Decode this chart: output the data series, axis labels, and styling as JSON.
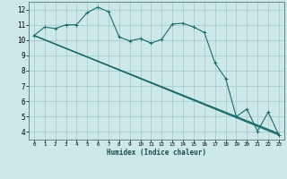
{
  "xlabel": "Humidex (Indice chaleur)",
  "background_color": "#cce8e8",
  "grid_color": "#aacccc",
  "line_color": "#1a6b6b",
  "xlim": [
    -0.5,
    23.5
  ],
  "ylim": [
    3.5,
    12.5
  ],
  "yticks": [
    4,
    5,
    6,
    7,
    8,
    9,
    10,
    11,
    12
  ],
  "xtick_labels": [
    "0",
    "1",
    "2",
    "3",
    "4",
    "5",
    "6",
    "7",
    "8",
    "9",
    "10",
    "11",
    "12",
    "13",
    "14",
    "15",
    "16",
    "17",
    "18",
    "19",
    "20",
    "21",
    "22",
    "23"
  ],
  "line1_x": [
    0,
    1,
    2,
    3,
    4,
    5,
    6,
    7,
    8,
    9,
    10,
    11,
    12,
    13,
    14,
    15,
    16,
    17,
    18,
    19,
    20,
    21,
    22,
    23
  ],
  "line1_y": [
    10.3,
    10.85,
    10.75,
    11.0,
    11.0,
    11.8,
    12.15,
    11.85,
    10.2,
    9.95,
    10.1,
    9.8,
    10.05,
    11.05,
    11.1,
    10.85,
    10.5,
    8.5,
    7.5,
    5.0,
    5.5,
    4.05,
    5.3,
    3.8
  ],
  "line2_x": [
    0,
    23
  ],
  "line2_y": [
    10.3,
    3.8
  ],
  "line3_x": [
    0,
    23
  ],
  "line3_y": [
    10.3,
    3.85
  ],
  "line4_x": [
    0,
    23
  ],
  "line4_y": [
    10.3,
    3.9
  ]
}
